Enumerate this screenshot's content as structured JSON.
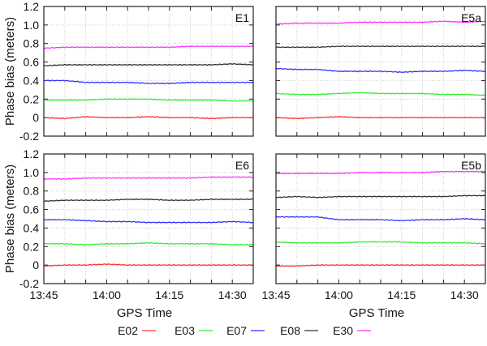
{
  "chart_data": [
    {
      "type": "line",
      "panel_label": "E1",
      "x": [
        "13:45",
        "13:50",
        "13:55",
        "14:00",
        "14:05",
        "14:10",
        "14:15",
        "14:20",
        "14:25",
        "14:30",
        "14:35"
      ],
      "series": [
        {
          "name": "E02",
          "values": [
            0,
            -0.01,
            0.01,
            0.0,
            0.0,
            0.01,
            0.0,
            0.0,
            -0.01,
            0.0,
            0.0
          ]
        },
        {
          "name": "E03",
          "values": [
            0.19,
            0.19,
            0.19,
            0.2,
            0.2,
            0.2,
            0.19,
            0.19,
            0.19,
            0.18,
            0.18
          ]
        },
        {
          "name": "E07",
          "values": [
            0.4,
            0.4,
            0.38,
            0.38,
            0.38,
            0.37,
            0.37,
            0.38,
            0.38,
            0.38,
            0.38
          ]
        },
        {
          "name": "E08",
          "values": [
            0.56,
            0.57,
            0.57,
            0.57,
            0.57,
            0.57,
            0.57,
            0.57,
            0.57,
            0.58,
            0.57
          ]
        },
        {
          "name": "E30",
          "values": [
            0.75,
            0.76,
            0.76,
            0.76,
            0.76,
            0.76,
            0.76,
            0.77,
            0.77,
            0.77,
            0.77
          ]
        }
      ]
    },
    {
      "type": "line",
      "panel_label": "E5a",
      "x": [
        "13:45",
        "13:50",
        "13:55",
        "14:00",
        "14:05",
        "14:10",
        "14:15",
        "14:20",
        "14:25",
        "14:30",
        "14:35"
      ],
      "series": [
        {
          "name": "E02",
          "values": [
            0,
            -0.01,
            0.0,
            0.01,
            0.0,
            0.0,
            0.0,
            0.0,
            0.0,
            0.0,
            0.0
          ]
        },
        {
          "name": "E03",
          "values": [
            0.26,
            0.25,
            0.25,
            0.26,
            0.27,
            0.26,
            0.26,
            0.26,
            0.25,
            0.25,
            0.24
          ]
        },
        {
          "name": "E07",
          "values": [
            0.53,
            0.52,
            0.52,
            0.5,
            0.5,
            0.5,
            0.49,
            0.5,
            0.5,
            0.51,
            0.5
          ]
        },
        {
          "name": "E08",
          "values": [
            0.76,
            0.76,
            0.76,
            0.77,
            0.77,
            0.77,
            0.77,
            0.77,
            0.77,
            0.77,
            0.77
          ]
        },
        {
          "name": "E30",
          "values": [
            1.01,
            1.02,
            1.02,
            1.02,
            1.03,
            1.03,
            1.03,
            1.03,
            1.04,
            1.03,
            1.04
          ]
        }
      ]
    },
    {
      "type": "line",
      "panel_label": "E6",
      "x": [
        "13:45",
        "13:50",
        "13:55",
        "14:00",
        "14:05",
        "14:10",
        "14:15",
        "14:20",
        "14:25",
        "14:30",
        "14:35"
      ],
      "series": [
        {
          "name": "E02",
          "values": [
            -0.01,
            0.0,
            0.0,
            0.01,
            0.0,
            0.0,
            0.0,
            0.0,
            0.0,
            0.0,
            0.0
          ]
        },
        {
          "name": "E03",
          "values": [
            0.23,
            0.23,
            0.22,
            0.23,
            0.23,
            0.24,
            0.23,
            0.23,
            0.23,
            0.22,
            0.22
          ]
        },
        {
          "name": "E07",
          "values": [
            0.49,
            0.49,
            0.48,
            0.47,
            0.47,
            0.46,
            0.46,
            0.46,
            0.46,
            0.47,
            0.46
          ]
        },
        {
          "name": "E08",
          "values": [
            0.69,
            0.7,
            0.7,
            0.7,
            0.71,
            0.71,
            0.7,
            0.7,
            0.71,
            0.71,
            0.71
          ]
        },
        {
          "name": "E30",
          "values": [
            0.93,
            0.93,
            0.94,
            0.94,
            0.94,
            0.94,
            0.94,
            0.94,
            0.95,
            0.95,
            0.95
          ]
        }
      ]
    },
    {
      "type": "line",
      "panel_label": "E5b",
      "x": [
        "13:45",
        "13:50",
        "13:55",
        "14:00",
        "14:05",
        "14:10",
        "14:15",
        "14:20",
        "14:25",
        "14:30",
        "14:35"
      ],
      "series": [
        {
          "name": "E02",
          "values": [
            -0.01,
            -0.01,
            0.0,
            0.0,
            0.0,
            0.0,
            0.0,
            0.0,
            0.0,
            0.0,
            0.0
          ]
        },
        {
          "name": "E03",
          "values": [
            0.25,
            0.24,
            0.24,
            0.24,
            0.25,
            0.25,
            0.25,
            0.24,
            0.24,
            0.24,
            0.23
          ]
        },
        {
          "name": "E07",
          "values": [
            0.52,
            0.52,
            0.52,
            0.49,
            0.49,
            0.49,
            0.48,
            0.49,
            0.49,
            0.5,
            0.49
          ]
        },
        {
          "name": "E08",
          "values": [
            0.73,
            0.74,
            0.73,
            0.74,
            0.74,
            0.74,
            0.74,
            0.74,
            0.74,
            0.75,
            0.75
          ]
        },
        {
          "name": "E30",
          "values": [
            0.99,
            0.99,
            0.99,
            0.99,
            1.0,
            1.0,
            1.0,
            1.0,
            1.01,
            1.01,
            1.01
          ]
        }
      ]
    }
  ],
  "axes": {
    "ylabel": "Phase bias (meters)",
    "xlabel": "GPS Time",
    "ylim": [
      -0.2,
      1.2
    ],
    "yticks": [
      "-0.2",
      "0",
      "0.2",
      "0.4",
      "0.6",
      "0.8",
      "1.0",
      "1.2"
    ],
    "xticks": [
      "13:45",
      "14:00",
      "14:15",
      "14:30"
    ],
    "xlim_minutes": [
      0,
      50
    ],
    "grid": true
  },
  "legend": {
    "placement": "bottom",
    "entries": [
      "E02",
      "E03",
      "E07",
      "E08",
      "E30"
    ]
  },
  "colors": {
    "E02": "#ff3030",
    "E03": "#30ee30",
    "E07": "#3030ff",
    "E08": "#333333",
    "E30": "#ff30ff"
  }
}
